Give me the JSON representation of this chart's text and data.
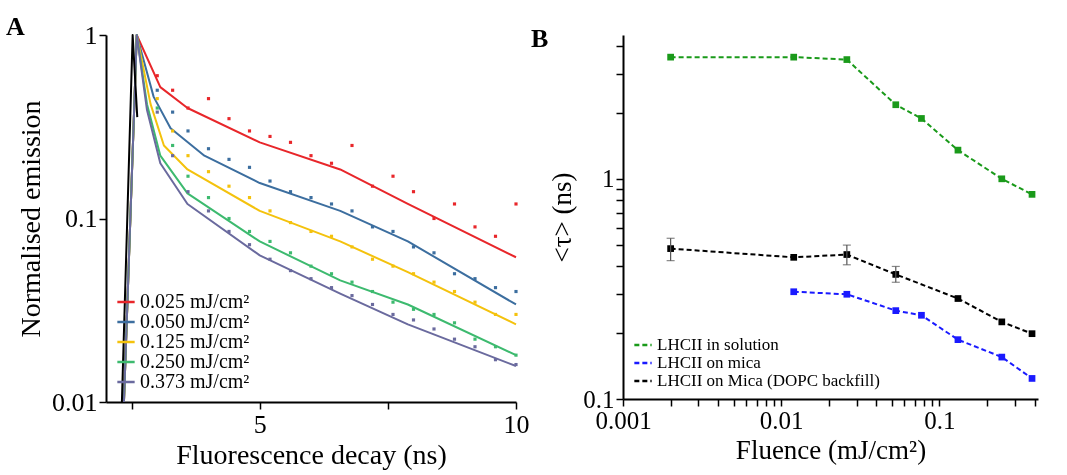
{
  "chart_data": [
    {
      "type": "line",
      "title": "A",
      "xlabel": "Fluorescence decay (ns)",
      "ylabel": "Normalised emission",
      "xlim": [
        2,
        10
      ],
      "ylim": [
        0.01,
        1
      ],
      "xticks": [
        {
          "value": 2.5,
          "label": null
        },
        5,
        {
          "value": 7.5,
          "label": null
        },
        10
      ],
      "yticks": [
        0.01,
        0.1,
        1
      ],
      "log": "y",
      "grid": false,
      "legend": "bottom left",
      "marker": "none",
      "line_style": "solid",
      "series": [
        {
          "type": "scatter",
          "marker": "square",
          "color": "#e8262a",
          "x": [
            3.0,
            3.3,
            3.6,
            4.0,
            4.4,
            4.8,
            5.2,
            5.6,
            6.0,
            6.4,
            6.8,
            7.2,
            7.6,
            8.0,
            8.4,
            8.8,
            9.2,
            9.6,
            10.0
          ],
          "values": [
            0.6,
            0.5,
            0.4,
            0.45,
            0.35,
            0.3,
            0.28,
            0.26,
            0.22,
            0.2,
            0.25,
            0.15,
            0.17,
            0.14,
            0.1,
            0.12,
            0.09,
            0.08,
            0.12
          ]
        },
        {
          "type": "scatter",
          "marker": "square",
          "color": "#3c6e9f",
          "x": [
            3.0,
            3.3,
            3.6,
            4.0,
            4.4,
            4.8,
            5.2,
            5.6,
            6.0,
            6.4,
            6.8,
            7.2,
            7.6,
            8.0,
            8.4,
            8.8,
            9.2,
            9.6,
            10.0
          ],
          "values": [
            0.5,
            0.38,
            0.3,
            0.24,
            0.21,
            0.19,
            0.16,
            0.14,
            0.13,
            0.12,
            0.11,
            0.09,
            0.085,
            0.07,
            0.065,
            0.05,
            0.047,
            0.042,
            0.04
          ]
        },
        {
          "type": "scatter",
          "marker": "square",
          "color": "#f4c20d",
          "x": [
            3.0,
            3.3,
            3.6,
            4.0,
            4.4,
            4.8,
            5.2,
            5.6,
            6.0,
            6.4,
            6.8,
            7.2,
            7.6,
            8.0,
            8.4,
            8.8,
            9.2,
            9.6,
            10.0
          ],
          "values": [
            0.45,
            0.3,
            0.22,
            0.18,
            0.15,
            0.13,
            0.11,
            0.095,
            0.085,
            0.08,
            0.07,
            0.06,
            0.055,
            0.05,
            0.045,
            0.04,
            0.035,
            0.03,
            0.03
          ]
        },
        {
          "type": "scatter",
          "marker": "square",
          "color": "#3dba6f",
          "x": [
            3.0,
            3.3,
            3.6,
            4.0,
            4.4,
            4.8,
            5.2,
            5.6,
            6.0,
            6.4,
            6.8,
            7.2,
            7.6,
            8.0,
            8.4,
            8.8,
            9.2,
            9.6,
            10.0
          ],
          "values": [
            0.4,
            0.25,
            0.17,
            0.13,
            0.1,
            0.085,
            0.075,
            0.065,
            0.055,
            0.05,
            0.045,
            0.04,
            0.035,
            0.032,
            0.03,
            0.027,
            0.022,
            0.02,
            0.018
          ]
        },
        {
          "type": "scatter",
          "marker": "square",
          "color": "#6a6a9e",
          "x": [
            3.0,
            3.3,
            3.6,
            4.0,
            4.4,
            4.8,
            5.2,
            5.6,
            6.0,
            6.4,
            6.8,
            7.2,
            7.6,
            8.0,
            8.4,
            8.8,
            9.2,
            9.6,
            10.0
          ],
          "values": [
            0.38,
            0.22,
            0.14,
            0.11,
            0.085,
            0.072,
            0.06,
            0.052,
            0.047,
            0.042,
            0.038,
            0.034,
            0.03,
            0.028,
            0.025,
            0.022,
            0.02,
            0.017,
            0.016
          ]
        },
        {
          "name": "0.025 mJ/cm²",
          "color": "#e8262a",
          "x": [
            2.35,
            2.6,
            3.06,
            3.59,
            5,
            6.57,
            7.89,
            10
          ],
          "values": [
            0.01,
            1,
            0.52,
            0.4,
            0.26,
            0.185,
            0.12,
            0.0615
          ]
        },
        {
          "name": "0.050 mJ/cm²",
          "color": "#3c6e9f",
          "x": [
            2.35,
            2.6,
            2.93,
            3.26,
            3.92,
            5,
            6.57,
            7.89,
            10
          ],
          "values": [
            0.01,
            1,
            0.46,
            0.31,
            0.22,
            0.156,
            0.11,
            0.075,
            0.034
          ]
        },
        {
          "name": "0.125 mJ/cm²",
          "color": "#f4c20d",
          "x": [
            2.35,
            2.6,
            2.87,
            3.13,
            3.59,
            5,
            6.57,
            7.89,
            10
          ],
          "values": [
            0.01,
            1,
            0.42,
            0.25,
            0.185,
            0.11,
            0.075,
            0.051,
            0.0265
          ]
        },
        {
          "name": "0.250 mJ/cm²",
          "color": "#3dba6f",
          "x": [
            2.35,
            2.6,
            2.8,
            3.06,
            3.59,
            5,
            6.57,
            7.89,
            10
          ],
          "values": [
            0.01,
            1,
            0.42,
            0.22,
            0.137,
            0.075,
            0.046,
            0.034,
            0.018
          ]
        },
        {
          "name": "0.373 mJ/cm²",
          "color": "#6a6a9e",
          "x": [
            2.35,
            2.6,
            2.8,
            3.06,
            3.59,
            5,
            6.57,
            7.89,
            10
          ],
          "values": [
            0.01,
            1,
            0.39,
            0.2,
            0.12,
            0.063,
            0.039,
            0.0265,
            0.0157
          ]
        },
        {
          "color": "#000000",
          "x": [
            2.31,
            2.52,
            2.61
          ],
          "values": [
            0.01,
            1,
            0.357
          ]
        }
      ]
    },
    {
      "type": "line",
      "title": "B",
      "xlabel": "Fluence (mJ/cm²)",
      "ylabel": "<τ> (ns)",
      "xlim": [
        0.001,
        0.42
      ],
      "ylim": [
        0.1,
        4.5
      ],
      "xticks": [
        0.001,
        {
          "value": 0.002,
          "label": null
        },
        {
          "value": 0.003,
          "label": null
        },
        {
          "value": 0.004,
          "label": null
        },
        {
          "value": 0.005,
          "label": null
        },
        {
          "value": 0.006,
          "label": null
        },
        {
          "value": 0.007,
          "label": null
        },
        {
          "value": 0.008,
          "label": null
        },
        {
          "value": 0.009,
          "label": null
        },
        0.01,
        {
          "value": 0.02,
          "label": null
        },
        {
          "value": 0.03,
          "label": null
        },
        {
          "value": 0.04,
          "label": null
        },
        {
          "value": 0.05,
          "label": null
        },
        {
          "value": 0.06,
          "label": null
        },
        {
          "value": 0.07,
          "label": null
        },
        {
          "value": 0.08,
          "label": null
        },
        {
          "value": 0.09,
          "label": null
        },
        0.1,
        {
          "value": 0.2,
          "label": null
        },
        {
          "value": 0.3,
          "label": null
        },
        {
          "value": 0.4,
          "label": null
        }
      ],
      "yticks": [
        0.1,
        {
          "value": 0.2,
          "label": null
        },
        {
          "value": 0.3,
          "label": null
        },
        {
          "value": 0.4,
          "label": null
        },
        {
          "value": 0.5,
          "label": null
        },
        {
          "value": 0.6,
          "label": null
        },
        {
          "value": 0.7,
          "label": null
        },
        {
          "value": 0.8,
          "label": null
        },
        {
          "value": 0.9,
          "label": null
        },
        1,
        {
          "value": 2,
          "label": null
        },
        {
          "value": 3,
          "label": null
        },
        {
          "value": 4,
          "label": null
        }
      ],
      "log": "xy",
      "grid": false,
      "legend": "bottom left",
      "marker": "square",
      "line_style": "dashed",
      "series": [
        {
          "name": "LHCII in solution",
          "color": "#1a9a1a",
          "x": [
            0.002,
            0.012,
            0.026,
            0.053,
            0.077,
            0.131,
            0.248,
            0.385
          ],
          "values": [
            3.57,
            3.57,
            3.48,
            2.17,
            1.88,
            1.35,
            1.0,
            0.85
          ]
        },
        {
          "name": "LHCII on mica",
          "color": "#1a1aff",
          "x": [
            0.012,
            0.026,
            0.053,
            0.077,
            0.131,
            0.248,
            0.385
          ],
          "values": [
            0.307,
            0.299,
            0.252,
            0.24,
            0.186,
            0.155,
            0.124
          ]
        },
        {
          "name": "LHCII on Mica (DOPC backfill)",
          "color": "#000000",
          "x": [
            0.002,
            0.012,
            0.026,
            0.053,
            0.131,
            0.248,
            0.385
          ],
          "values": [
            0.482,
            0.44,
            0.453,
            0.368,
            0.286,
            0.224,
            0.198
          ],
          "errors": [
            [
              0.425,
              0.537
            ],
            null,
            [
              0.407,
              0.5
            ],
            [
              0.339,
              0.4
            ],
            null,
            null,
            null
          ]
        }
      ]
    }
  ]
}
